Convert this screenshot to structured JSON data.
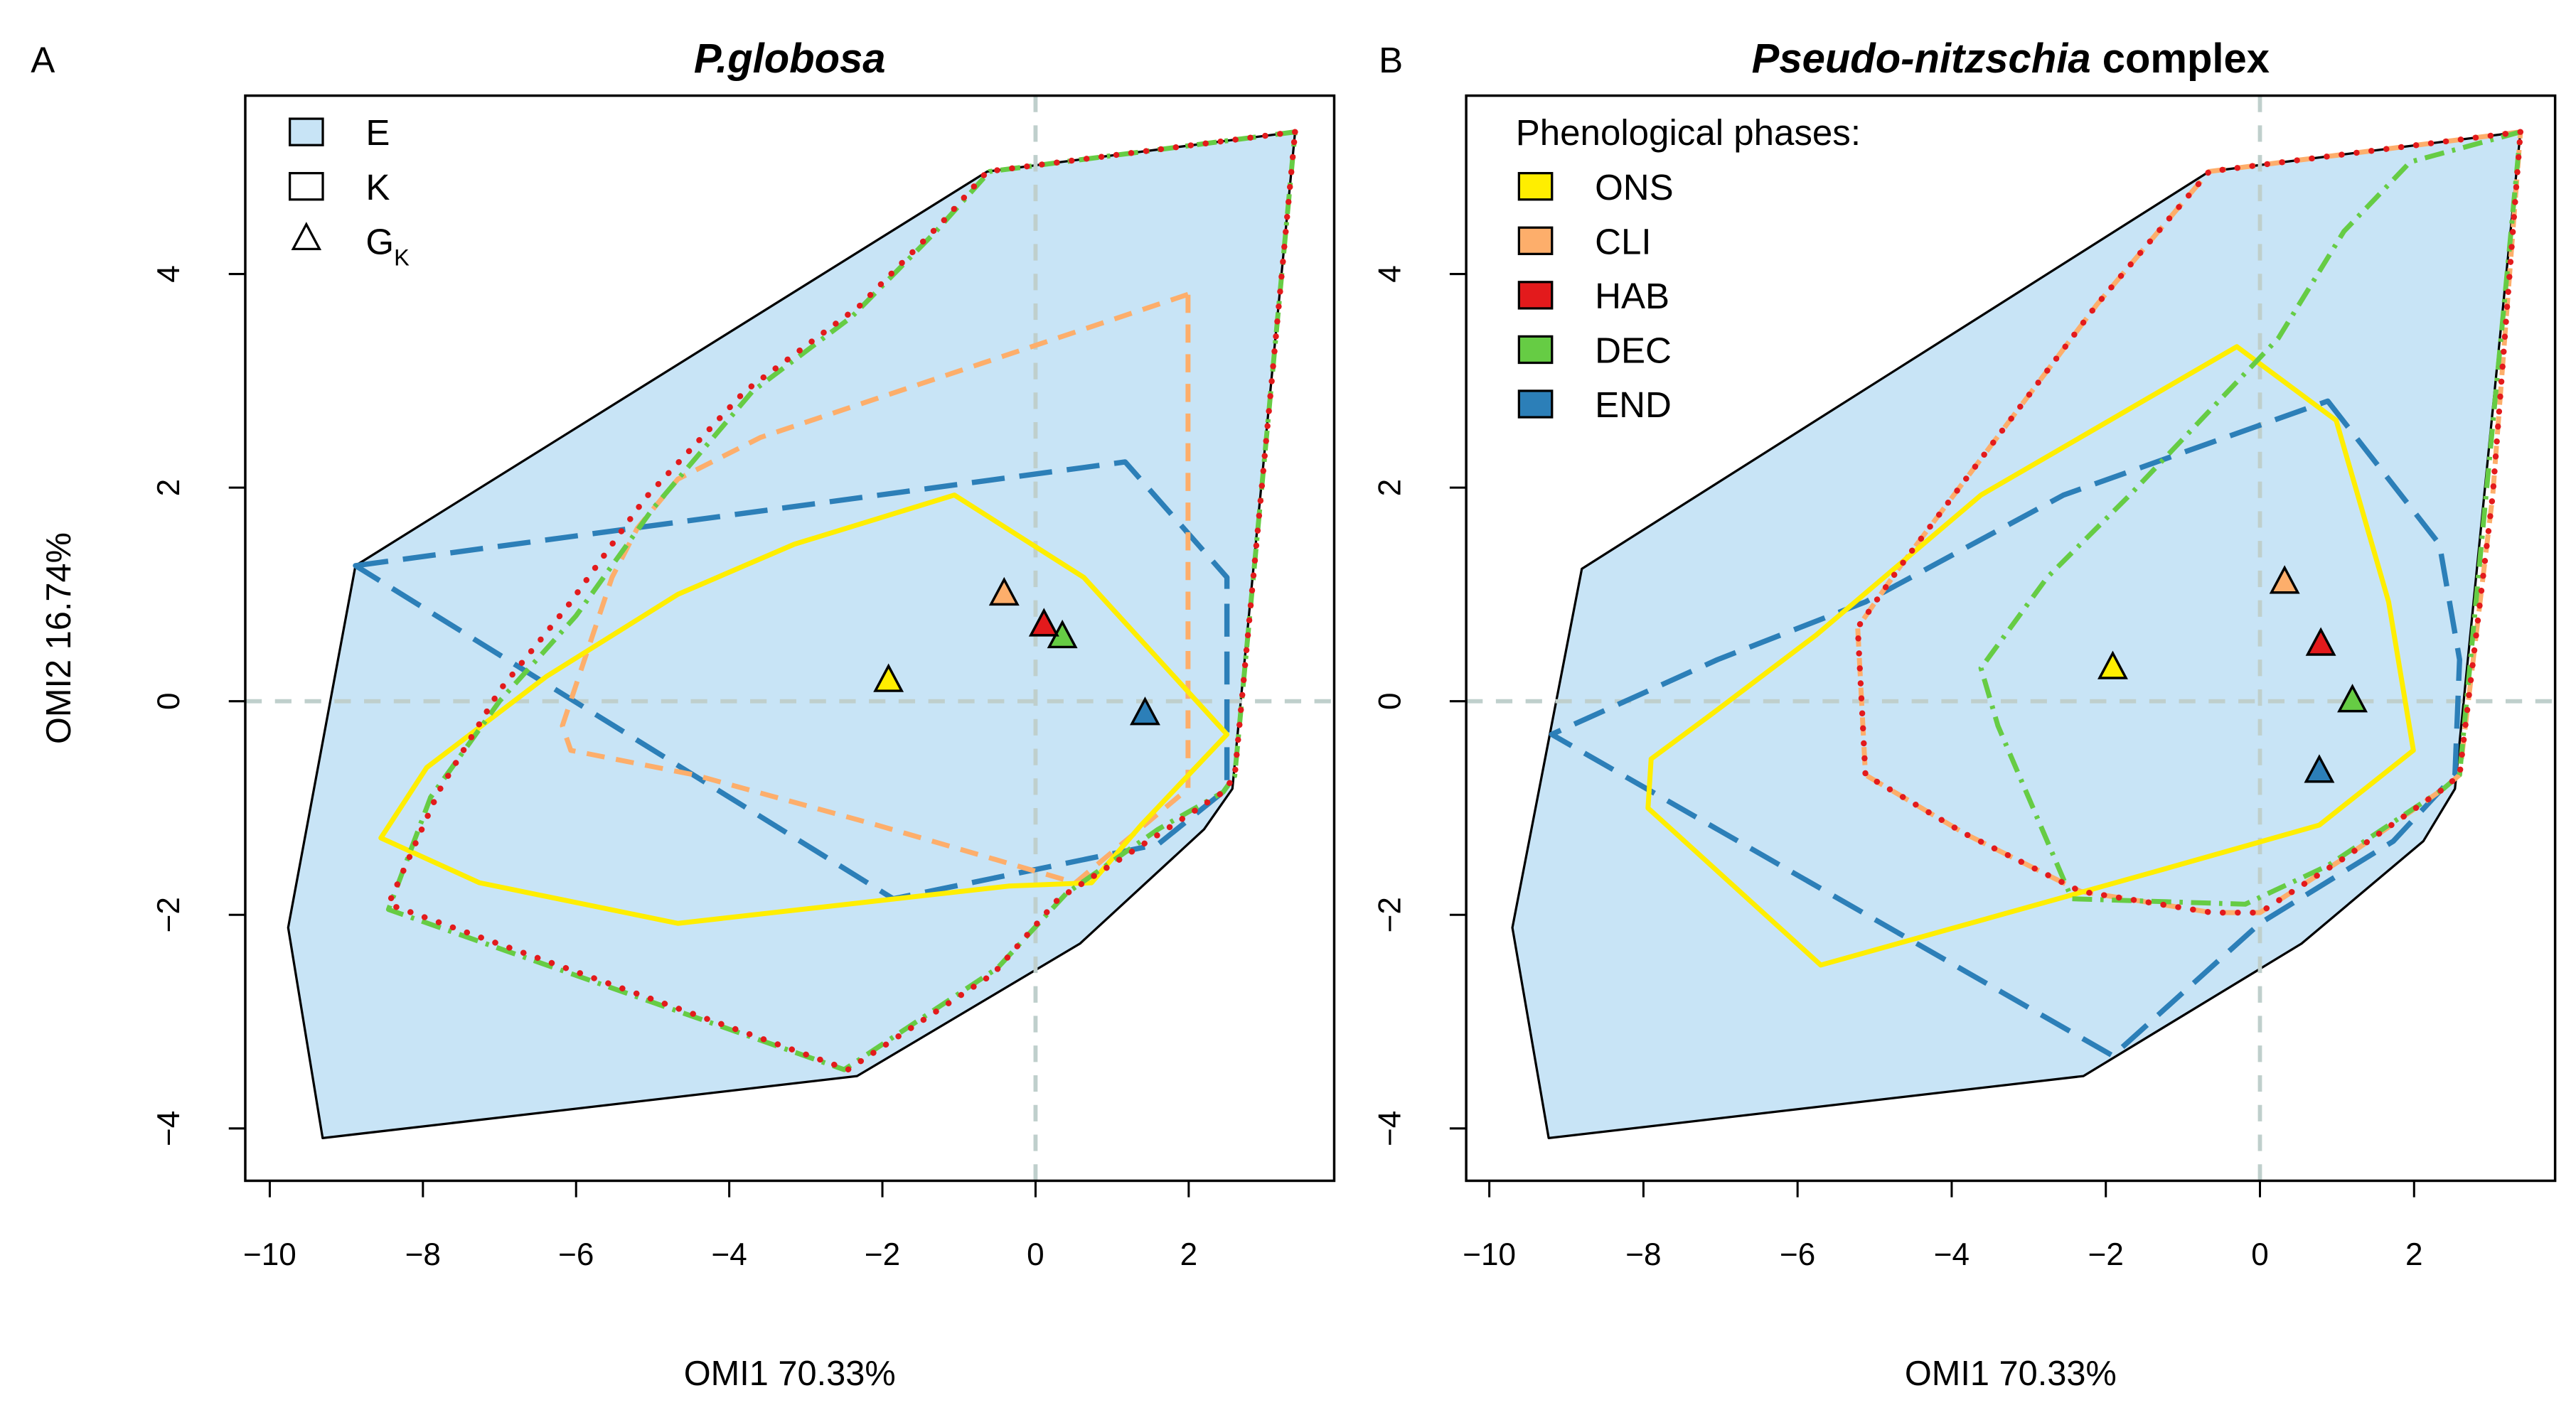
{
  "chart_data": [
    {
      "type": "scatter",
      "panel_letter": "A",
      "title": "P.globosa",
      "title_suffix": "",
      "xlabel": "OMI1 70.33%",
      "ylabel": "OMI2 16.74%",
      "xlim": [
        -10.32,
        3.9
      ],
      "ylim": [
        -4.49,
        5.67
      ],
      "xticks": [
        -10,
        -8,
        -6,
        -4,
        -2,
        0,
        2
      ],
      "yticks": [
        -4,
        -2,
        0,
        2,
        4
      ],
      "legend": {
        "placement": "top-left",
        "title": "",
        "entries": [
          {
            "symbol": "filled-square",
            "label": "E",
            "sub": ""
          },
          {
            "symbol": "open-square",
            "label": "K",
            "sub": ""
          },
          {
            "symbol": "triangle",
            "label": "G",
            "sub": "K"
          }
        ]
      },
      "environment_E": [
        [
          3.39,
          5.33
        ],
        [
          -0.63,
          4.96
        ],
        [
          -8.88,
          1.27
        ],
        [
          -9.76,
          -2.12
        ],
        [
          -9.31,
          -4.09
        ],
        [
          -2.33,
          -3.51
        ],
        [
          0.58,
          -2.27
        ],
        [
          2.2,
          -1.2
        ],
        [
          2.57,
          -0.82
        ]
      ],
      "series": [
        {
          "name": "END",
          "polygon": [
            [
              -8.88,
              1.27
            ],
            [
              1.17,
              2.24
            ],
            [
              2.5,
              1.16
            ],
            [
              2.5,
              -0.82
            ],
            [
              1.6,
              -1.34
            ],
            [
              -1.86,
              -1.85
            ]
          ],
          "centroid": [
            1.43,
            -0.12
          ]
        },
        {
          "name": "CLI",
          "polygon": [
            [
              1.99,
              3.81
            ],
            [
              -3.59,
              2.47
            ],
            [
              -4.67,
              2.08
            ],
            [
              -5.2,
              1.62
            ],
            [
              -5.53,
              1.16
            ],
            [
              -6.18,
              -0.23
            ],
            [
              -6.07,
              -0.46
            ],
            [
              -4.45,
              -0.69
            ],
            [
              -2.07,
              -1.16
            ],
            [
              0.52,
              -1.7
            ],
            [
              1.99,
              -0.82
            ]
          ],
          "centroid": [
            -0.41,
            1.0
          ]
        },
        {
          "name": "ONS",
          "polygon": [
            [
              -1.06,
              1.93
            ],
            [
              0.63,
              1.16
            ],
            [
              2.5,
              -0.31
            ],
            [
              1.38,
              -1.16
            ],
            [
              0.73,
              -1.7
            ],
            [
              -0.35,
              -1.73
            ],
            [
              -4.67,
              -2.08
            ],
            [
              -7.26,
              -1.7
            ],
            [
              -8.55,
              -1.28
            ],
            [
              -7.95,
              -0.62
            ],
            [
              -6.39,
              0.23
            ],
            [
              -4.67,
              1.0
            ],
            [
              -3.15,
              1.47
            ]
          ],
          "centroid": [
            -1.92,
            0.19
          ]
        },
        {
          "name": "DEC",
          "polygon": [
            [
              3.39,
              5.33
            ],
            [
              -0.6,
              4.96
            ],
            [
              -1.3,
              4.4
            ],
            [
              -2.4,
              3.6
            ],
            [
              -3.7,
              2.9
            ],
            [
              -5.0,
              1.8
            ],
            [
              -6.0,
              0.8
            ],
            [
              -7.0,
              0.0
            ],
            [
              -7.9,
              -0.9
            ],
            [
              -8.45,
              -1.95
            ],
            [
              -2.5,
              -3.45
            ],
            [
              -0.5,
              -2.5
            ],
            [
              0.4,
              -1.8
            ],
            [
              1.6,
              -1.2
            ],
            [
              2.45,
              -0.85
            ],
            [
              2.6,
              -0.7
            ]
          ],
          "centroid": [
            0.35,
            0.6
          ]
        },
        {
          "name": "HAB",
          "polygon": [
            [
              3.39,
              5.33
            ],
            [
              -0.63,
              4.96
            ],
            [
              -1.2,
              4.5
            ],
            [
              -2.3,
              3.7
            ],
            [
              -3.8,
              2.9
            ],
            [
              -5.1,
              1.9
            ],
            [
              -6.1,
              0.9
            ],
            [
              -7.0,
              0.1
            ],
            [
              -7.8,
              -0.85
            ],
            [
              -8.45,
              -1.9
            ],
            [
              -2.45,
              -3.45
            ],
            [
              -0.55,
              -2.55
            ],
            [
              0.3,
              -1.85
            ],
            [
              1.6,
              -1.25
            ],
            [
              2.45,
              -0.85
            ],
            [
              2.6,
              -0.7
            ]
          ],
          "centroid": [
            0.11,
            0.71
          ]
        }
      ]
    },
    {
      "type": "scatter",
      "panel_letter": "B",
      "title": "Pseudo-nitzschia",
      "title_suffix": " complex",
      "xlabel": "OMI1 70.33%",
      "ylabel": "",
      "xlim": [
        -10.3,
        3.83
      ],
      "ylim": [
        -4.49,
        5.67
      ],
      "xticks": [
        -10,
        -8,
        -6,
        -4,
        -2,
        0,
        2
      ],
      "yticks": [
        -4,
        -2,
        0,
        2,
        4
      ],
      "legend": {
        "placement": "top-left",
        "title": "Phenological phases:",
        "entries": [
          {
            "symbol": "filled-square",
            "label": "ONS",
            "sub": ""
          },
          {
            "symbol": "filled-square",
            "label": "CLI",
            "sub": ""
          },
          {
            "symbol": "filled-square",
            "label": "HAB",
            "sub": ""
          },
          {
            "symbol": "filled-square",
            "label": "DEC",
            "sub": ""
          },
          {
            "symbol": "filled-square",
            "label": "END",
            "sub": ""
          }
        ]
      },
      "environment_E": [
        [
          3.38,
          5.33
        ],
        [
          -0.66,
          4.96
        ],
        [
          -8.8,
          1.24
        ],
        [
          -9.7,
          -2.12
        ],
        [
          -9.23,
          -4.09
        ],
        [
          -2.29,
          -3.51
        ],
        [
          0.54,
          -2.27
        ],
        [
          2.12,
          -1.31
        ],
        [
          2.53,
          -0.82
        ]
      ],
      "series": [
        {
          "name": "END",
          "polygon": [
            [
              0.88,
              2.81
            ],
            [
              2.33,
              1.47
            ],
            [
              2.59,
              0.39
            ],
            [
              2.53,
              -0.69
            ],
            [
              1.73,
              -1.31
            ],
            [
              0,
              -2.08
            ],
            [
              -1.91,
              -3.32
            ],
            [
              -9.19,
              -0.31
            ],
            [
              -7.04,
              0.39
            ],
            [
              -5.12,
              0.93
            ],
            [
              -2.55,
              1.93
            ]
          ],
          "centroid": [
            0.77,
            -0.66
          ]
        },
        {
          "name": "CLI",
          "polygon": [
            [
              3.38,
              5.33
            ],
            [
              -0.66,
              4.96
            ],
            [
              -1.05,
              4.63
            ],
            [
              -2.12,
              3.71
            ],
            [
              -4.69,
              1.24
            ],
            [
              -5.22,
              0.69
            ],
            [
              -5.12,
              -0.69
            ],
            [
              -3.83,
              -1.24
            ],
            [
              -2.33,
              -1.78
            ],
            [
              -0.62,
              -1.98
            ],
            [
              0,
              -1.98
            ],
            [
              1.09,
              -1.47
            ],
            [
              2.38,
              -0.82
            ],
            [
              2.59,
              -0.69
            ],
            [
              3.02,
              1.93
            ]
          ],
          "centroid": [
            0.32,
            1.11
          ]
        },
        {
          "name": "ONS",
          "polygon": [
            [
              -0.3,
              3.32
            ],
            [
              0.99,
              2.63
            ],
            [
              1.67,
              0.93
            ],
            [
              1.99,
              -0.46
            ],
            [
              0.77,
              -1.16
            ],
            [
              -1.48,
              -1.62
            ],
            [
              -5.7,
              -2.47
            ],
            [
              -7.94,
              -1.0
            ],
            [
              -7.9,
              -0.54
            ],
            [
              -7.04,
              -0.08
            ],
            [
              -5.76,
              0.62
            ],
            [
              -3.62,
              1.93
            ]
          ],
          "centroid": [
            -1.91,
            0.31
          ]
        },
        {
          "name": "DEC",
          "polygon": [
            [
              3.38,
              5.33
            ],
            [
              1.95,
              5.05
            ],
            [
              1.09,
              4.4
            ],
            [
              0.24,
              3.4
            ],
            [
              -1.69,
              1.93
            ],
            [
              -2.76,
              1.16
            ],
            [
              -3.62,
              0.31
            ],
            [
              -3.4,
              -0.23
            ],
            [
              -2.44,
              -1.85
            ],
            [
              -0.19,
              -1.9
            ],
            [
              0.88,
              -1.54
            ],
            [
              2.38,
              -0.82
            ],
            [
              2.59,
              -0.69
            ]
          ],
          "centroid": [
            1.2,
            0.0
          ]
        },
        {
          "name": "HAB",
          "polygon": [
            [
              3.38,
              5.33
            ],
            [
              -0.66,
              4.96
            ],
            [
              -1.05,
              4.63
            ],
            [
              -2.12,
              3.71
            ],
            [
              -4.69,
              1.24
            ],
            [
              -5.22,
              0.69
            ],
            [
              -5.12,
              -0.69
            ],
            [
              -3.83,
              -1.24
            ],
            [
              -2.33,
              -1.78
            ],
            [
              -0.62,
              -1.98
            ],
            [
              0,
              -1.98
            ],
            [
              1.09,
              -1.47
            ],
            [
              2.38,
              -0.82
            ],
            [
              2.59,
              -0.69
            ],
            [
              3.02,
              1.93
            ]
          ],
          "centroid": [
            0.79,
            0.53
          ]
        }
      ]
    }
  ],
  "colors": {
    "ONS": "#FFEE00",
    "CLI": "#FDAE6B",
    "HAB": "#E31A1C",
    "DEC": "#66CC44",
    "END": "#2C7FB8",
    "E_fill": "#C8E4F6",
    "reference_line": "#BFCFCC"
  }
}
